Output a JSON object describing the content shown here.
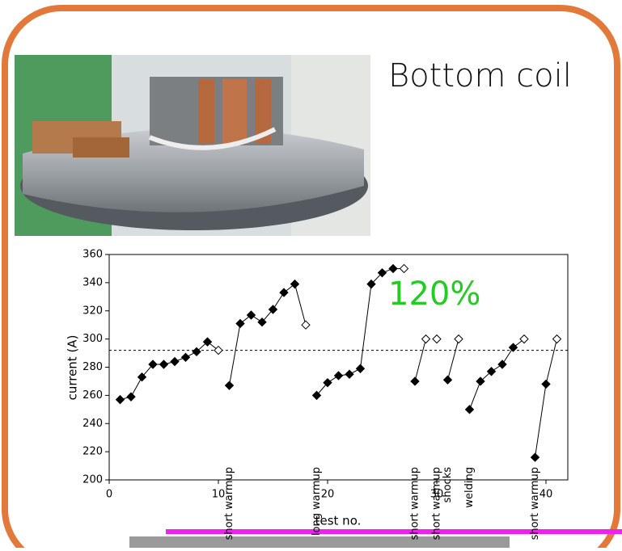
{
  "title": "Bottom coil",
  "chart_data": {
    "type": "line",
    "xlabel": "test no.",
    "ylabel": "current (A)",
    "annotation": "120%",
    "annotation_color": "#22cc22",
    "xlim": [
      0,
      42
    ],
    "ylim": [
      200,
      360
    ],
    "xticks": [
      0,
      10,
      20,
      30,
      40
    ],
    "yticks": [
      200,
      220,
      240,
      260,
      280,
      300,
      320,
      340,
      360
    ],
    "reference_line": 292,
    "color": "#000000",
    "notes": [
      {
        "text": "short warmup",
        "x": 11
      },
      {
        "text": "long warmup",
        "x": 19
      },
      {
        "text": "short warmup",
        "x": 28
      },
      {
        "text": "short warmup",
        "x": 30
      },
      {
        "text": "shocks",
        "x": 31
      },
      {
        "text": "welding",
        "x": 33
      },
      {
        "text": "short warmup",
        "x": 39
      }
    ],
    "series": [
      {
        "x": [
          1,
          2,
          3,
          4,
          5,
          6,
          7,
          8,
          9,
          10
        ],
        "values": [
          257,
          259,
          273,
          282,
          282,
          284,
          287,
          291,
          298,
          292
        ],
        "markers": [
          "filled",
          "filled",
          "filled",
          "filled",
          "filled",
          "filled",
          "filled",
          "filled",
          "filled",
          "open"
        ]
      },
      {
        "x": [
          11,
          12,
          13,
          14,
          15,
          16,
          17,
          18
        ],
        "values": [
          267,
          311,
          317,
          312,
          321,
          333,
          339,
          310
        ],
        "markers": [
          "filled",
          "filled",
          "filled",
          "filled",
          "filled",
          "filled",
          "filled",
          "open"
        ]
      },
      {
        "x": [
          19,
          20,
          21,
          22,
          23,
          24,
          25,
          26,
          27
        ],
        "values": [
          260,
          269,
          274,
          275,
          279,
          339,
          347,
          350,
          350
        ],
        "markers": [
          "filled",
          "filled",
          "filled",
          "filled",
          "filled",
          "filled",
          "filled",
          "filled",
          "open"
        ]
      },
      {
        "x": [
          28,
          29
        ],
        "values": [
          270,
          300
        ],
        "markers": [
          "filled",
          "open"
        ]
      },
      {
        "x": [
          30
        ],
        "values": [
          300
        ],
        "markers": [
          "open"
        ]
      },
      {
        "x": [
          31,
          32
        ],
        "values": [
          271,
          300
        ],
        "markers": [
          "filled",
          "open"
        ]
      },
      {
        "x": [
          33,
          34,
          35,
          36,
          37,
          38
        ],
        "values": [
          250,
          270,
          277,
          282,
          294,
          300
        ],
        "markers": [
          "filled",
          "filled",
          "filled",
          "filled",
          "filled",
          "open"
        ]
      },
      {
        "x": [
          39,
          40,
          41
        ],
        "values": [
          216,
          268,
          300
        ],
        "markers": [
          "filled",
          "filled",
          "open"
        ]
      }
    ]
  }
}
